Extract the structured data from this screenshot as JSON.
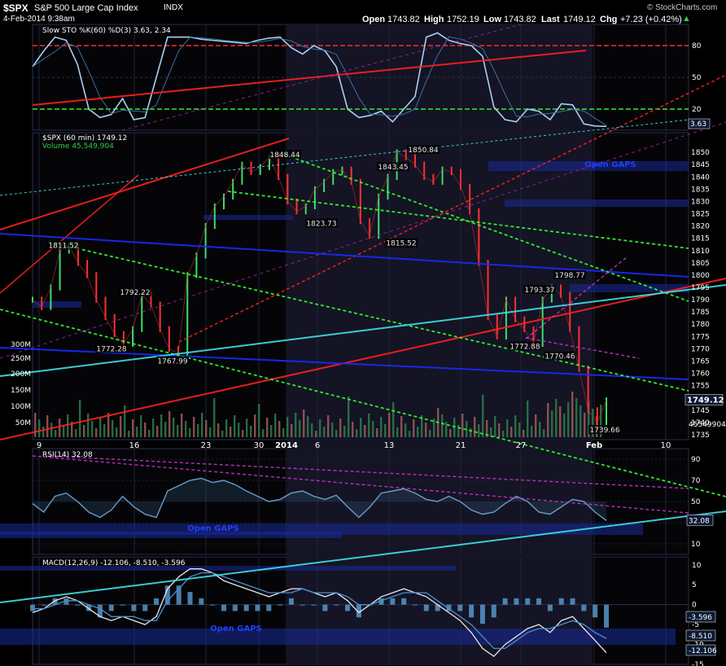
{
  "header": {
    "symbol": "$SPX",
    "name": "S&P 500 Large Cap Index",
    "exchange": "INDX",
    "datetime": "4-Feb-2014 9:38am",
    "open_label": "Open",
    "open": "1743.82",
    "high_label": "High",
    "high": "1752.19",
    "low_label": "Low",
    "low": "1743.82",
    "last_label": "Last",
    "last": "1749.12",
    "chg_label": "Chg",
    "chg": "+7.23 (+0.42%)",
    "watermark": "© StockCharts.com"
  },
  "chart_data": [
    {
      "type": "line",
      "panel": "sto",
      "title": "Slow STO %K(60) %D(3) 3.63, 2.34",
      "ylim": [
        0,
        100
      ],
      "ticks": [
        80,
        50,
        20
      ],
      "levels": [
        80,
        20
      ],
      "last_value_label": "3.63",
      "series": [
        {
          "values": [
            60,
            75,
            88,
            85,
            62,
            20,
            12,
            15,
            30,
            10,
            12,
            50,
            88,
            88,
            88,
            86,
            85,
            84,
            83,
            82,
            85,
            87,
            88,
            78,
            72,
            80,
            75,
            60,
            20,
            12,
            14,
            18,
            8,
            20,
            32,
            88,
            92,
            85,
            82,
            80,
            70,
            22,
            10,
            8,
            20,
            18,
            10,
            25,
            24,
            6,
            4,
            3.6
          ]
        }
      ]
    },
    {
      "type": "bar",
      "panel": "price",
      "title": "$SPX (60 min) 1749.12",
      "volume_label": "Volume 45,549,904",
      "ylim": [
        1733,
        1858
      ],
      "ticks": [
        1850,
        1845,
        1840,
        1835,
        1830,
        1825,
        1820,
        1815,
        1810,
        1805,
        1800,
        1795,
        1790,
        1785,
        1780,
        1775,
        1770,
        1765,
        1760,
        1755,
        1750,
        1745,
        1740,
        1735
      ],
      "volume_ticks": [
        "300M",
        "250M",
        "200M",
        "150M",
        "100M",
        "50M"
      ],
      "x_ticks": [
        "9",
        "16",
        "23",
        "30",
        "2014",
        "6",
        "13",
        "21",
        "27",
        "Feb",
        "10"
      ],
      "last_value_label": "1749.12",
      "volume_value_label": "45549904",
      "annotations": [
        "1848.44",
        "1850.84",
        "1843.45",
        "1823.73",
        "1815.52",
        "1811.52",
        "1792.22",
        "1772.28",
        "1767.99",
        "1798.77",
        "1793.37",
        "1772.88",
        "1770.46",
        "1739.66",
        "Open GAPS"
      ],
      "series": [
        {
          "name": "$SPX",
          "values": [
            1790,
            1787,
            1795,
            1810,
            1812,
            1805,
            1800,
            1790,
            1783,
            1776,
            1772,
            1778,
            1792,
            1788,
            1778,
            1770,
            1768,
            1800,
            1808,
            1820,
            1828,
            1832,
            1838,
            1845,
            1842,
            1844,
            1848,
            1840,
            1830,
            1826,
            1828,
            1835,
            1838,
            1842,
            1843,
            1838,
            1822,
            1816,
            1832,
            1840,
            1850,
            1848,
            1845,
            1840,
            1838,
            1843,
            1842,
            1836,
            1826,
            1805,
            1783,
            1775,
            1790,
            1782,
            1778,
            1772,
            1790,
            1795,
            1792,
            1778,
            1762,
            1745,
            1740,
            1749
          ]
        }
      ]
    },
    {
      "type": "line",
      "panel": "rsi",
      "title": "RSI(14) 32.08",
      "ylim": [
        0,
        100
      ],
      "ticks": [
        90,
        70,
        50,
        30,
        10
      ],
      "last_value_label": "32.08",
      "annotations": [
        "Open GAPS"
      ],
      "series": [
        {
          "values": [
            48,
            40,
            55,
            58,
            50,
            40,
            35,
            42,
            55,
            45,
            38,
            35,
            60,
            65,
            70,
            72,
            68,
            70,
            66,
            60,
            55,
            50,
            52,
            58,
            60,
            55,
            52,
            56,
            45,
            35,
            45,
            58,
            60,
            62,
            58,
            52,
            50,
            55,
            50,
            42,
            38,
            40,
            48,
            55,
            50,
            40,
            38,
            45,
            52,
            50,
            40,
            32
          ]
        }
      ]
    },
    {
      "type": "bar",
      "panel": "macd",
      "title": "MACD(12,26,9) -12.106, -8.510, -3.596",
      "ylim": [
        -15,
        12
      ],
      "ticks": [
        10,
        5,
        0,
        -5,
        -10,
        -15
      ],
      "last_value_labels": [
        "-3.596",
        "-8.510",
        "-12.106"
      ],
      "annotations": [
        "Open GAPS"
      ],
      "series": [
        {
          "name": "MACD",
          "values": [
            -2,
            -1,
            1,
            2,
            1,
            -1,
            -3,
            -4,
            -3,
            -4,
            -5,
            -3,
            4,
            7,
            9,
            9,
            8,
            6,
            5,
            4,
            3,
            2,
            3,
            4,
            4,
            3,
            2,
            3,
            1,
            -2,
            0,
            2,
            3,
            4,
            3,
            2,
            0,
            -2,
            -4,
            -7,
            -11,
            -13,
            -10,
            -8,
            -6,
            -5,
            -7,
            -4,
            -3,
            -6,
            -9,
            -12.1
          ]
        },
        {
          "name": "Signal",
          "values": [
            -1,
            -1,
            0,
            1,
            1,
            0,
            -1,
            -3,
            -3,
            -3,
            -4,
            -4,
            1,
            4,
            7,
            8,
            8,
            7,
            6,
            5,
            4,
            3,
            3,
            3,
            4,
            3,
            3,
            3,
            2,
            0,
            0,
            1,
            2,
            3,
            3,
            3,
            1,
            -1,
            -3,
            -5,
            -8,
            -11,
            -11,
            -9,
            -7,
            -6,
            -6,
            -5,
            -4,
            -5,
            -7,
            -8.5
          ]
        }
      ]
    }
  ]
}
